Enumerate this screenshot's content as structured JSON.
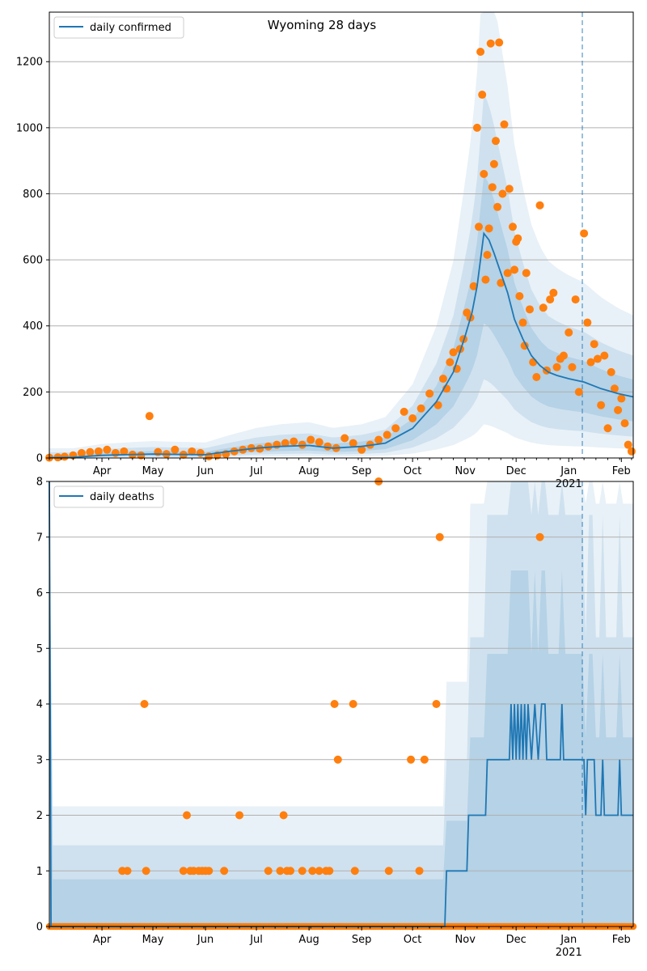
{
  "chart_data": [
    {
      "type": "line",
      "title": "Wyoming 28 days",
      "legend": {
        "placement": "top-left",
        "entries": [
          "daily confirmed"
        ]
      },
      "grid": "horizontal",
      "ylim": [
        0,
        1350
      ],
      "yticks": [
        0,
        200,
        400,
        600,
        800,
        1000,
        1200
      ],
      "x_axis": {
        "start": "2020-03-01",
        "end": "2021-02-08",
        "tick_labels": [
          "Apr",
          "May",
          "Jun",
          "Jul",
          "Aug",
          "Sep",
          "Oct",
          "Nov",
          "Dec",
          "Jan",
          "Feb"
        ],
        "year_label": "2021"
      },
      "forecast_line": "2021-01-09",
      "series": [
        {
          "name": "daily confirmed",
          "kind": "line",
          "color": "#1f77b4",
          "points": [
            [
              "2020-03-01",
              1
            ],
            [
              "2020-03-15",
              2
            ],
            [
              "2020-04-01",
              8
            ],
            [
              "2020-04-15",
              10
            ],
            [
              "2020-05-01",
              12
            ],
            [
              "2020-05-15",
              11
            ],
            [
              "2020-06-01",
              10
            ],
            [
              "2020-06-15",
              20
            ],
            [
              "2020-07-01",
              30
            ],
            [
              "2020-07-15",
              35
            ],
            [
              "2020-08-01",
              38
            ],
            [
              "2020-08-15",
              30
            ],
            [
              "2020-09-01",
              35
            ],
            [
              "2020-09-15",
              45
            ],
            [
              "2020-10-01",
              90
            ],
            [
              "2020-10-15",
              170
            ],
            [
              "2020-10-25",
              260
            ],
            [
              "2020-11-01",
              370
            ],
            [
              "2020-11-05",
              440
            ],
            [
              "2020-11-08",
              520
            ],
            [
              "2020-11-10",
              600
            ],
            [
              "2020-11-12",
              680
            ],
            [
              "2020-11-15",
              660
            ],
            [
              "2020-11-18",
              620
            ],
            [
              "2020-11-22",
              560
            ],
            [
              "2020-11-26",
              500
            ],
            [
              "2020-11-30",
              420
            ],
            [
              "2020-12-05",
              360
            ],
            [
              "2020-12-10",
              310
            ],
            [
              "2020-12-15",
              280
            ],
            [
              "2020-12-20",
              260
            ],
            [
              "2020-12-25",
              250
            ],
            [
              "2021-01-01",
              240
            ],
            [
              "2021-01-10",
              230
            ],
            [
              "2021-01-20",
              210
            ],
            [
              "2021-01-30",
              195
            ],
            [
              "2021-02-08",
              185
            ]
          ]
        },
        {
          "name": "",
          "kind": "scatter",
          "color": "#ff7f0e",
          "points": [
            [
              "2020-03-01",
              1
            ],
            [
              "2020-03-06",
              2
            ],
            [
              "2020-03-10",
              4
            ],
            [
              "2020-03-15",
              8
            ],
            [
              "2020-03-20",
              15
            ],
            [
              "2020-03-25",
              18
            ],
            [
              "2020-03-30",
              20
            ],
            [
              "2020-04-04",
              25
            ],
            [
              "2020-04-09",
              15
            ],
            [
              "2020-04-14",
              20
            ],
            [
              "2020-04-19",
              10
            ],
            [
              "2020-04-24",
              8
            ],
            [
              "2020-04-29",
              127
            ],
            [
              "2020-05-04",
              18
            ],
            [
              "2020-05-09",
              12
            ],
            [
              "2020-05-14",
              25
            ],
            [
              "2020-05-19",
              10
            ],
            [
              "2020-05-24",
              20
            ],
            [
              "2020-05-29",
              15
            ],
            [
              "2020-06-03",
              5
            ],
            [
              "2020-06-08",
              8
            ],
            [
              "2020-06-13",
              12
            ],
            [
              "2020-06-18",
              20
            ],
            [
              "2020-06-23",
              25
            ],
            [
              "2020-06-28",
              30
            ],
            [
              "2020-07-03",
              28
            ],
            [
              "2020-07-08",
              35
            ],
            [
              "2020-07-13",
              40
            ],
            [
              "2020-07-18",
              45
            ],
            [
              "2020-07-23",
              50
            ],
            [
              "2020-07-28",
              40
            ],
            [
              "2020-08-02",
              55
            ],
            [
              "2020-08-07",
              48
            ],
            [
              "2020-08-12",
              35
            ],
            [
              "2020-08-17",
              30
            ],
            [
              "2020-08-22",
              60
            ],
            [
              "2020-08-27",
              45
            ],
            [
              "2020-09-01",
              25
            ],
            [
              "2020-09-06",
              40
            ],
            [
              "2020-09-11",
              55
            ],
            [
              "2020-09-16",
              70
            ],
            [
              "2020-09-21",
              90
            ],
            [
              "2020-09-26",
              140
            ],
            [
              "2020-10-01",
              120
            ],
            [
              "2020-10-06",
              150
            ],
            [
              "2020-10-11",
              195
            ],
            [
              "2020-10-16",
              160
            ],
            [
              "2020-10-19",
              240
            ],
            [
              "2020-10-21",
              210
            ],
            [
              "2020-10-23",
              290
            ],
            [
              "2020-10-25",
              320
            ],
            [
              "2020-10-27",
              270
            ],
            [
              "2020-10-29",
              330
            ],
            [
              "2020-10-31",
              360
            ],
            [
              "2020-11-02",
              440
            ],
            [
              "2020-11-04",
              425
            ],
            [
              "2020-11-06",
              520
            ],
            [
              "2020-11-08",
              1000
            ],
            [
              "2020-11-09",
              700
            ],
            [
              "2020-11-10",
              1230
            ],
            [
              "2020-11-11",
              1100
            ],
            [
              "2020-11-12",
              860
            ],
            [
              "2020-11-13",
              540
            ],
            [
              "2020-11-14",
              615
            ],
            [
              "2020-11-15",
              695
            ],
            [
              "2020-11-16",
              1255
            ],
            [
              "2020-11-17",
              820
            ],
            [
              "2020-11-18",
              890
            ],
            [
              "2020-11-19",
              960
            ],
            [
              "2020-11-20",
              760
            ],
            [
              "2020-11-21",
              1258
            ],
            [
              "2020-11-22",
              530
            ],
            [
              "2020-11-23",
              800
            ],
            [
              "2020-11-24",
              1010
            ],
            [
              "2020-11-26",
              560
            ],
            [
              "2020-11-27",
              815
            ],
            [
              "2020-11-29",
              700
            ],
            [
              "2020-11-30",
              570
            ],
            [
              "2020-12-01",
              655
            ],
            [
              "2020-12-02",
              665
            ],
            [
              "2020-12-03",
              490
            ],
            [
              "2020-12-05",
              410
            ],
            [
              "2020-12-06",
              340
            ],
            [
              "2020-12-07",
              560
            ],
            [
              "2020-12-09",
              450
            ],
            [
              "2020-12-11",
              290
            ],
            [
              "2020-12-13",
              245
            ],
            [
              "2020-12-15",
              765
            ],
            [
              "2020-12-17",
              455
            ],
            [
              "2020-12-19",
              265
            ],
            [
              "2020-12-21",
              480
            ],
            [
              "2020-12-23",
              500
            ],
            [
              "2020-12-25",
              275
            ],
            [
              "2020-12-27",
              300
            ],
            [
              "2020-12-29",
              310
            ],
            [
              "2021-01-01",
              380
            ],
            [
              "2021-01-03",
              275
            ],
            [
              "2021-01-05",
              480
            ],
            [
              "2021-01-07",
              200
            ],
            [
              "2021-01-10",
              680
            ],
            [
              "2021-01-12",
              410
            ],
            [
              "2021-01-14",
              290
            ],
            [
              "2021-01-16",
              345
            ],
            [
              "2021-01-18",
              300
            ],
            [
              "2021-01-20",
              160
            ],
            [
              "2021-01-22",
              310
            ],
            [
              "2021-01-24",
              90
            ],
            [
              "2021-01-26",
              260
            ],
            [
              "2021-01-28",
              210
            ],
            [
              "2021-01-30",
              145
            ],
            [
              "2021-02-01",
              180
            ],
            [
              "2021-02-03",
              105
            ],
            [
              "2021-02-05",
              40
            ],
            [
              "2021-02-07",
              20
            ]
          ]
        }
      ]
    },
    {
      "type": "line",
      "legend": {
        "placement": "top-left",
        "entries": [
          "daily deaths"
        ]
      },
      "grid": "horizontal",
      "ylim": [
        0,
        8
      ],
      "yticks": [
        0,
        1,
        2,
        3,
        4,
        5,
        6,
        7,
        8
      ],
      "x_axis": {
        "start": "2020-03-01",
        "end": "2021-02-08",
        "tick_labels": [
          "Apr",
          "May",
          "Jun",
          "Jul",
          "Aug",
          "Sep",
          "Oct",
          "Nov",
          "Dec",
          "Jan",
          "Feb"
        ],
        "year_label": "2021"
      },
      "forecast_line": "2021-01-09",
      "series": [
        {
          "name": "daily deaths",
          "kind": "line",
          "color": "#1f77b4",
          "points": [
            [
              "2020-03-01",
              8
            ],
            [
              "2020-03-02",
              0
            ],
            [
              "2020-10-20",
              0
            ],
            [
              "2020-10-21",
              1
            ],
            [
              "2020-10-24",
              1
            ],
            [
              "2020-11-02",
              1
            ],
            [
              "2020-11-03",
              2
            ],
            [
              "2020-11-13",
              2
            ],
            [
              "2020-11-14",
              3
            ],
            [
              "2020-11-27",
              3
            ],
            [
              "2020-11-28",
              4
            ],
            [
              "2020-11-29",
              3
            ],
            [
              "2020-11-30",
              4
            ],
            [
              "2020-12-01",
              3
            ],
            [
              "2020-12-02",
              4
            ],
            [
              "2020-12-03",
              3
            ],
            [
              "2020-12-04",
              4
            ],
            [
              "2020-12-05",
              3
            ],
            [
              "2020-12-06",
              4
            ],
            [
              "2020-12-07",
              3
            ],
            [
              "2020-12-08",
              4
            ],
            [
              "2020-12-10",
              3
            ],
            [
              "2020-12-12",
              4
            ],
            [
              "2020-12-14",
              3
            ],
            [
              "2020-12-16",
              4
            ],
            [
              "2020-12-18",
              4
            ],
            [
              "2020-12-19",
              3
            ],
            [
              "2020-12-27",
              3
            ],
            [
              "2020-12-28",
              4
            ],
            [
              "2020-12-29",
              3
            ],
            [
              "2021-01-10",
              3
            ],
            [
              "2021-01-11",
              2
            ],
            [
              "2021-01-12",
              3
            ],
            [
              "2021-01-16",
              3
            ],
            [
              "2021-01-17",
              2
            ],
            [
              "2021-01-20",
              2
            ],
            [
              "2021-01-21",
              3
            ],
            [
              "2021-01-22",
              2
            ],
            [
              "2021-01-30",
              2
            ],
            [
              "2021-01-31",
              3
            ],
            [
              "2021-02-01",
              2
            ],
            [
              "2021-02-08",
              2
            ]
          ]
        },
        {
          "name": "",
          "kind": "scatter",
          "color": "#ff7f0e",
          "points": [
            [
              "2020-04-13",
              1
            ],
            [
              "2020-04-16",
              1
            ],
            [
              "2020-04-26",
              4
            ],
            [
              "2020-04-27",
              1
            ],
            [
              "2020-05-19",
              1
            ],
            [
              "2020-05-21",
              2
            ],
            [
              "2020-05-23",
              1
            ],
            [
              "2020-05-25",
              1
            ],
            [
              "2020-05-28",
              1
            ],
            [
              "2020-05-30",
              1
            ],
            [
              "2020-06-01",
              1
            ],
            [
              "2020-06-03",
              1
            ],
            [
              "2020-06-12",
              1
            ],
            [
              "2020-06-21",
              2
            ],
            [
              "2020-07-08",
              1
            ],
            [
              "2020-07-15",
              1
            ],
            [
              "2020-07-17",
              2
            ],
            [
              "2020-07-19",
              1
            ],
            [
              "2020-07-21",
              1
            ],
            [
              "2020-07-28",
              1
            ],
            [
              "2020-08-03",
              1
            ],
            [
              "2020-08-07",
              1
            ],
            [
              "2020-08-11",
              1
            ],
            [
              "2020-08-13",
              1
            ],
            [
              "2020-08-16",
              4
            ],
            [
              "2020-08-18",
              3
            ],
            [
              "2020-08-27",
              4
            ],
            [
              "2020-08-28",
              1
            ],
            [
              "2020-09-11",
              8
            ],
            [
              "2020-09-17",
              1
            ],
            [
              "2020-09-30",
              3
            ],
            [
              "2020-10-05",
              1
            ],
            [
              "2020-10-08",
              3
            ],
            [
              "2020-10-15",
              4
            ],
            [
              "2020-10-17",
              7
            ],
            [
              "2020-12-15",
              7
            ]
          ]
        },
        {
          "name": "",
          "kind": "scatter_zero_baseline",
          "color": "#ff7f0e",
          "range": [
            "2020-03-01",
            "2021-02-08"
          ],
          "value": 0
        }
      ]
    }
  ]
}
